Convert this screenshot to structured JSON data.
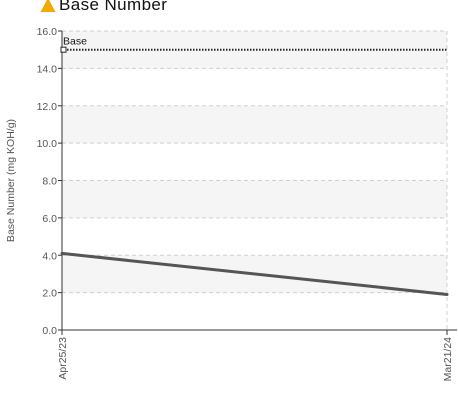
{
  "header": {
    "title": "Base Number",
    "icon": "warning-triangle-icon",
    "icon_color": "#f2a900"
  },
  "chart_data": {
    "type": "line",
    "title": "Base Number",
    "xlabel": "",
    "ylabel": "Base Number (mg KOH/g)",
    "ylim": [
      0,
      16
    ],
    "yticks": [
      "0.0",
      "2.0",
      "4.0",
      "6.0",
      "8.0",
      "10.0",
      "12.0",
      "14.0",
      "16.0"
    ],
    "categories": [
      "Apr25/23",
      "Mar21/24"
    ],
    "series": [
      {
        "values": [
          4.1,
          1.9
        ],
        "color": "#555555"
      }
    ],
    "reference_lines": [
      {
        "label": "Base",
        "value": 15.0,
        "style": "dotted",
        "color": "#222222"
      }
    ],
    "grid": true,
    "alternating_bands": true
  }
}
